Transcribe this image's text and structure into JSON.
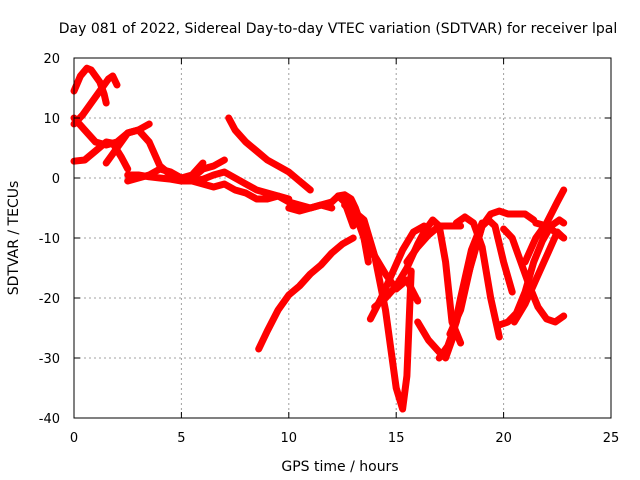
{
  "chart_data": {
    "type": "scatter",
    "title": "Day 081 of 2022, Sidereal Day-to-day VTEC variation (SDTVAR) for receiver lpal",
    "xlabel": "GPS time / hours",
    "ylabel": "SDTVAR / TECUs",
    "xlim": [
      0,
      25
    ],
    "ylim": [
      -40,
      20
    ],
    "xticks": [
      "0",
      "5",
      "10",
      "15",
      "20",
      "25"
    ],
    "yticks": [
      "-40",
      "-30",
      "-20",
      "-10",
      "0",
      "10",
      "20"
    ],
    "grid": true,
    "marker": "+",
    "color": "#ff0000",
    "series": [
      {
        "name": "s1",
        "x": [
          0.0,
          0.3,
          0.6,
          0.8,
          1.0,
          1.2,
          1.4,
          1.5
        ],
        "y": [
          14.5,
          17.0,
          18.3,
          18.0,
          17.0,
          16.0,
          14.0,
          12.5
        ]
      },
      {
        "name": "s2",
        "x": [
          0.0,
          0.4,
          0.8,
          1.2,
          1.6,
          1.8,
          2.0
        ],
        "y": [
          9.0,
          10.5,
          12.5,
          14.5,
          16.5,
          17.0,
          15.5
        ]
      },
      {
        "name": "s3",
        "x": [
          0.0,
          0.5,
          1.0,
          1.5,
          1.8,
          2.2,
          2.5
        ],
        "y": [
          2.8,
          3.0,
          4.5,
          6.0,
          5.8,
          3.5,
          1.5
        ]
      },
      {
        "name": "s4",
        "x": [
          0.0,
          0.5,
          1.0,
          1.5,
          2.0,
          2.5,
          3.0,
          3.5
        ],
        "y": [
          10.0,
          8.0,
          6.0,
          5.5,
          6.0,
          7.5,
          8.0,
          9.0
        ]
      },
      {
        "name": "s5",
        "x": [
          1.5,
          2.0,
          2.5,
          3.0,
          3.5,
          4.0,
          4.5,
          5.0,
          5.5,
          6.0
        ],
        "y": [
          2.5,
          5.0,
          7.5,
          8.0,
          6.0,
          2.0,
          0.5,
          0.0,
          0.5,
          2.5
        ]
      },
      {
        "name": "s6",
        "x": [
          2.5,
          3.0,
          3.5,
          4.0,
          4.5,
          5.0,
          5.5,
          6.0,
          6.5,
          7.0
        ],
        "y": [
          -0.5,
          0.0,
          0.5,
          1.5,
          1.0,
          0.0,
          0.0,
          1.5,
          2.0,
          3.0
        ]
      },
      {
        "name": "s7",
        "x": [
          2.5,
          3.0,
          3.5,
          4.0,
          4.5,
          5.0
        ],
        "y": [
          0.5,
          0.5,
          0.2,
          0.0,
          -0.2,
          -0.5
        ]
      },
      {
        "name": "s8",
        "x": [
          5.0,
          5.5,
          6.0,
          6.5,
          7.0,
          7.5,
          8.0,
          8.5,
          9.0,
          9.5,
          10.0,
          10.5,
          11.0,
          11.5,
          12.0
        ],
        "y": [
          -0.5,
          -0.5,
          -0.2,
          0.5,
          1.0,
          0.0,
          -1.0,
          -2.0,
          -2.5,
          -3.0,
          -4.0,
          -4.5,
          -5.0,
          -4.5,
          -5.0
        ]
      },
      {
        "name": "s9",
        "x": [
          5.5,
          6.0,
          6.5,
          7.0,
          7.5,
          8.0,
          8.5,
          9.0,
          9.5,
          10.0
        ],
        "y": [
          -0.5,
          -1.0,
          -1.5,
          -1.0,
          -2.0,
          -2.5,
          -3.5,
          -3.5,
          -3.0,
          -3.5
        ]
      },
      {
        "name": "s10",
        "x": [
          7.2,
          7.5,
          8.0,
          8.5,
          9.0,
          9.5,
          10.0,
          10.5,
          11.0
        ],
        "y": [
          10.0,
          8.0,
          6.0,
          4.5,
          3.0,
          2.0,
          1.0,
          -0.5,
          -2.0
        ]
      },
      {
        "name": "s11",
        "x": [
          10.0,
          10.5,
          11.0,
          11.5,
          12.0,
          12.3,
          12.6,
          13.0
        ],
        "y": [
          -5.0,
          -5.5,
          -5.0,
          -4.5,
          -4.0,
          -3.0,
          -4.0,
          -8.0
        ]
      },
      {
        "name": "s12",
        "x": [
          8.6,
          9.0,
          9.5,
          10.0,
          10.5,
          11.0,
          11.5,
          12.0,
          12.5,
          13.0
        ],
        "y": [
          -28.5,
          -25.5,
          -22.0,
          -19.5,
          -18.0,
          -16.0,
          -14.5,
          -12.5,
          -11.0,
          -10.0
        ]
      },
      {
        "name": "s13",
        "x": [
          12.3,
          12.6,
          12.9,
          13.1,
          13.3,
          13.5,
          13.7
        ],
        "y": [
          -3.0,
          -2.8,
          -3.5,
          -5.0,
          -7.0,
          -10.0,
          -14.0
        ]
      },
      {
        "name": "s14",
        "x": [
          12.6,
          13.0,
          13.3,
          13.5,
          13.7
        ],
        "y": [
          -4.5,
          -6.0,
          -8.0,
          -10.0,
          -13.0
        ]
      },
      {
        "name": "s15",
        "x": [
          12.7,
          13.0,
          13.5,
          14.0,
          14.5,
          15.0,
          15.3,
          15.5,
          15.7
        ],
        "y": [
          -4.0,
          -5.5,
          -7.0,
          -13.0,
          -22.0,
          -35.0,
          -38.5,
          -33.0,
          -15.5
        ]
      },
      {
        "name": "s16",
        "x": [
          13.5,
          14.0,
          14.5,
          15.0,
          15.5,
          16.0
        ],
        "y": [
          -10.0,
          -13.0,
          -16.0,
          -18.5,
          -17.0,
          -20.5
        ]
      },
      {
        "name": "s17",
        "x": [
          13.8,
          14.3,
          14.8,
          15.3,
          15.8,
          16.3
        ],
        "y": [
          -23.5,
          -20.0,
          -16.0,
          -12.0,
          -9.0,
          -8.0
        ]
      },
      {
        "name": "s18",
        "x": [
          14.0,
          14.5,
          15.0,
          15.5,
          16.0,
          16.3
        ],
        "y": [
          -21.5,
          -20.0,
          -18.0,
          -15.0,
          -11.0,
          -9.0
        ]
      },
      {
        "name": "s19",
        "x": [
          15.5,
          16.0,
          16.5,
          17.0,
          17.5,
          18.0
        ],
        "y": [
          -14.0,
          -11.5,
          -9.5,
          -8.0,
          -8.0,
          -8.0
        ]
      },
      {
        "name": "s20",
        "x": [
          16.0,
          16.5,
          17.0,
          17.3,
          17.6,
          18.0,
          18.5,
          19.0
        ],
        "y": [
          -24.0,
          -27.0,
          -29.0,
          -30.0,
          -27.0,
          -20.0,
          -12.0,
          -7.5
        ]
      },
      {
        "name": "s21",
        "x": [
          16.3,
          16.7,
          17.0,
          17.3,
          17.6,
          18.0
        ],
        "y": [
          -9.0,
          -7.0,
          -8.0,
          -14.0,
          -24.0,
          -27.5
        ]
      },
      {
        "name": "s22",
        "x": [
          17.0,
          17.4,
          17.8,
          18.2,
          18.6
        ],
        "y": [
          -30.0,
          -28.0,
          -24.0,
          -18.0,
          -13.0
        ]
      },
      {
        "name": "s23",
        "x": [
          17.5,
          18.0,
          18.5,
          19.0,
          19.3,
          19.6,
          20.0,
          20.4
        ],
        "y": [
          -26.0,
          -22.0,
          -14.0,
          -8.0,
          -7.0,
          -8.0,
          -14.0,
          -19.0
        ]
      },
      {
        "name": "s24",
        "x": [
          17.8,
          18.2,
          18.6,
          19.0,
          19.4,
          19.8
        ],
        "y": [
          -7.5,
          -6.5,
          -7.5,
          -11.5,
          -20.0,
          -26.5
        ]
      },
      {
        "name": "s25",
        "x": [
          18.6,
          19.0,
          19.4,
          19.8,
          20.2,
          20.6,
          21.0,
          21.4
        ],
        "y": [
          -13.0,
          -8.0,
          -6.0,
          -5.5,
          -6.0,
          -6.0,
          -6.0,
          -7.0
        ]
      },
      {
        "name": "s26",
        "x": [
          19.8,
          20.2,
          20.6,
          21.0,
          21.4,
          21.8,
          22.2,
          22.6,
          22.8
        ],
        "y": [
          -24.5,
          -24.0,
          -22.5,
          -19.0,
          -14.0,
          -10.5,
          -8.0,
          -7.0,
          -7.5
        ]
      },
      {
        "name": "s27",
        "x": [
          20.0,
          20.4,
          20.8,
          21.2,
          21.6,
          22.0,
          22.4,
          22.8
        ],
        "y": [
          -8.5,
          -10.0,
          -14.0,
          -18.0,
          -21.5,
          -23.5,
          -24.0,
          -23.0
        ]
      },
      {
        "name": "s28",
        "x": [
          20.5,
          21.0,
          21.5,
          22.0,
          22.5,
          22.8
        ],
        "y": [
          -24.0,
          -21.0,
          -17.0,
          -13.0,
          -9.0,
          -10.0
        ]
      },
      {
        "name": "s29",
        "x": [
          21.0,
          21.5,
          22.0,
          22.5,
          22.8
        ],
        "y": [
          -14.0,
          -10.0,
          -7.5,
          -4.0,
          -2.0
        ]
      },
      {
        "name": "s30",
        "x": [
          21.5,
          22.0,
          22.4,
          22.8
        ],
        "y": [
          -7.5,
          -8.0,
          -9.0,
          -10.0
        ]
      }
    ]
  }
}
